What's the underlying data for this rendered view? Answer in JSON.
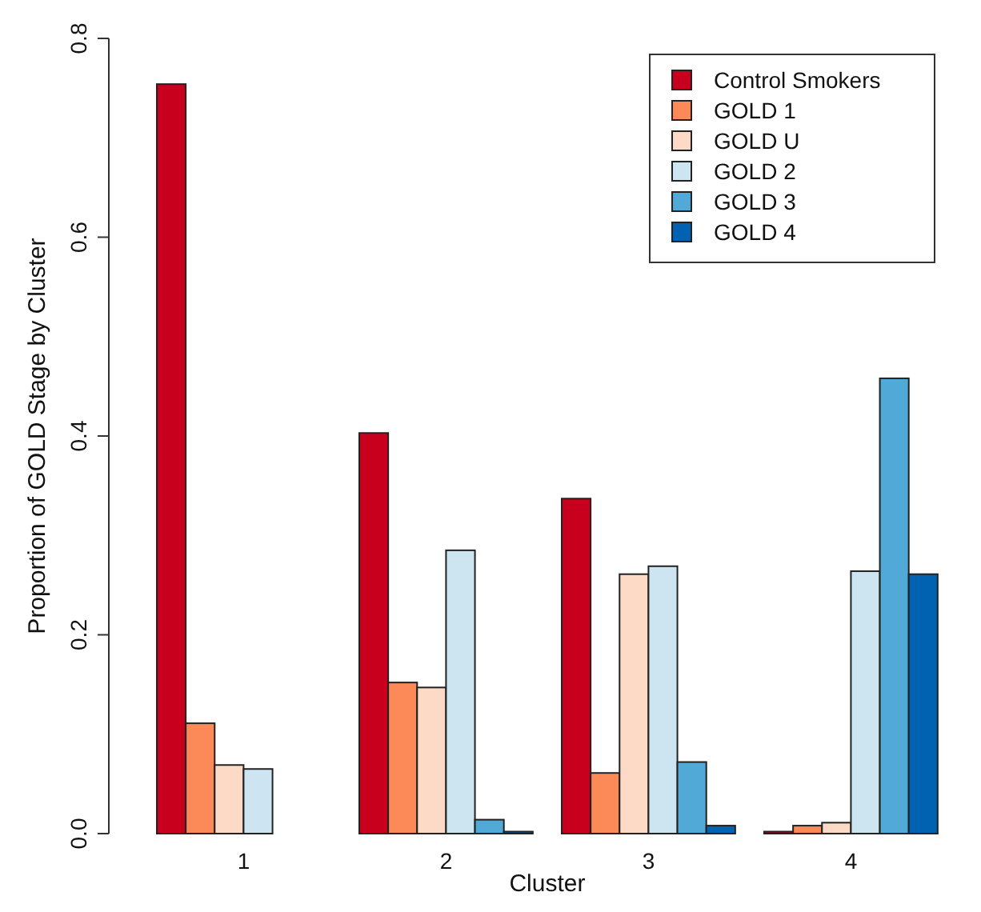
{
  "chart_data": {
    "type": "bar",
    "xlabel": "Cluster",
    "ylabel": "Proportion of GOLD Stage by Cluster",
    "categories": [
      "1",
      "2",
      "3",
      "4"
    ],
    "series": [
      {
        "name": "Control Smokers",
        "color": "#c8001e",
        "values": [
          0.754,
          0.403,
          0.337,
          0.002
        ]
      },
      {
        "name": "GOLD 1",
        "color": "#fb8a58",
        "values": [
          0.111,
          0.152,
          0.061,
          0.008
        ]
      },
      {
        "name": "GOLD U",
        "color": "#fddac6",
        "values": [
          0.069,
          0.147,
          0.261,
          0.011
        ]
      },
      {
        "name": "GOLD 2",
        "color": "#cde5f1",
        "values": [
          0.065,
          0.285,
          0.269,
          0.264
        ]
      },
      {
        "name": "GOLD 3",
        "color": "#50a9d7",
        "values": [
          null,
          0.014,
          0.072,
          0.458
        ]
      },
      {
        "name": "GOLD 4",
        "color": "#0062b0",
        "values": [
          0,
          0.002,
          0.008,
          0.261
        ]
      }
    ],
    "ylim": [
      0,
      0.8
    ],
    "yticks": [
      {
        "value": 0,
        "label": "0.0"
      },
      {
        "value": 0.2,
        "label": "0.2"
      },
      {
        "value": 0.4,
        "label": "0.4"
      },
      {
        "value": 0.6,
        "label": "0.6"
      },
      {
        "value": 0.8,
        "label": "0.8"
      }
    ],
    "legend": "top right",
    "grid": false
  }
}
